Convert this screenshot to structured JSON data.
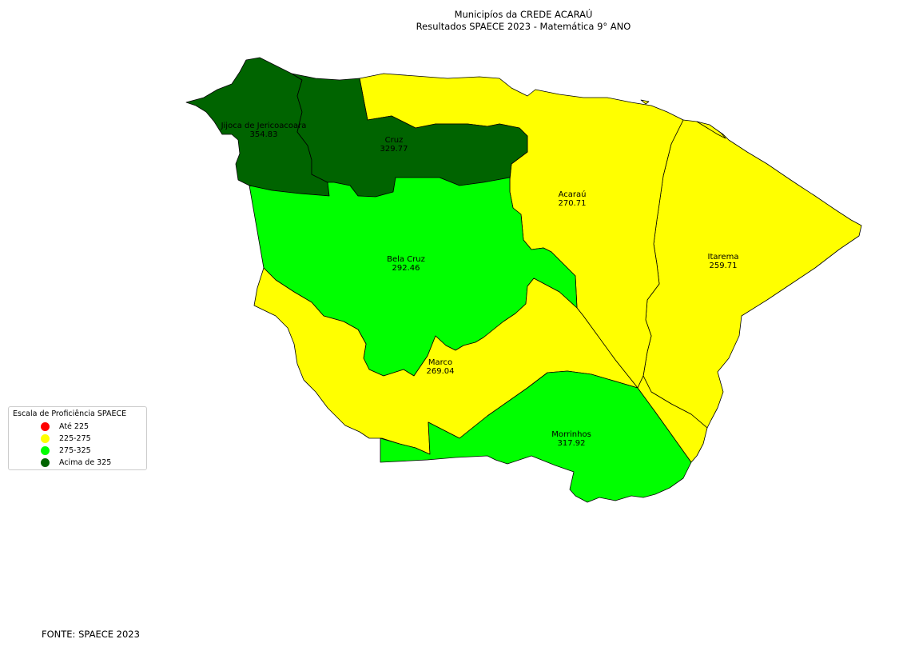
{
  "title_line1": "Municipíos da CREDE ACARAÚ",
  "title_line2": "Resultados SPAECE 2023 - Matemática 9° ANO",
  "legend": {
    "title": "Escala de Proficiência SPAECE",
    "items": [
      {
        "label": "Até 225",
        "color": "#ff0000"
      },
      {
        "label": "225-275",
        "color": "#ffff00"
      },
      {
        "label": "275-325",
        "color": "#00ff00"
      },
      {
        "label": "Acima de 325",
        "color": "#006400"
      }
    ]
  },
  "municipalities": [
    {
      "name": "Jijoca de Jericoacoara",
      "score": "354.83",
      "color": "#006400"
    },
    {
      "name": "Cruz",
      "score": "329.77",
      "color": "#006400"
    },
    {
      "name": "Acaraú",
      "score": "270.71",
      "color": "#ffff00"
    },
    {
      "name": "Itarema",
      "score": "259.71",
      "color": "#ffff00"
    },
    {
      "name": "Bela Cruz",
      "score": "292.46",
      "color": "#00ff00"
    },
    {
      "name": "Marco",
      "score": "269.04",
      "color": "#ffff00"
    },
    {
      "name": "Morrinhos",
      "score": "317.92",
      "color": "#00ff00"
    }
  ],
  "source": "FONTE: SPAECE 2023"
}
